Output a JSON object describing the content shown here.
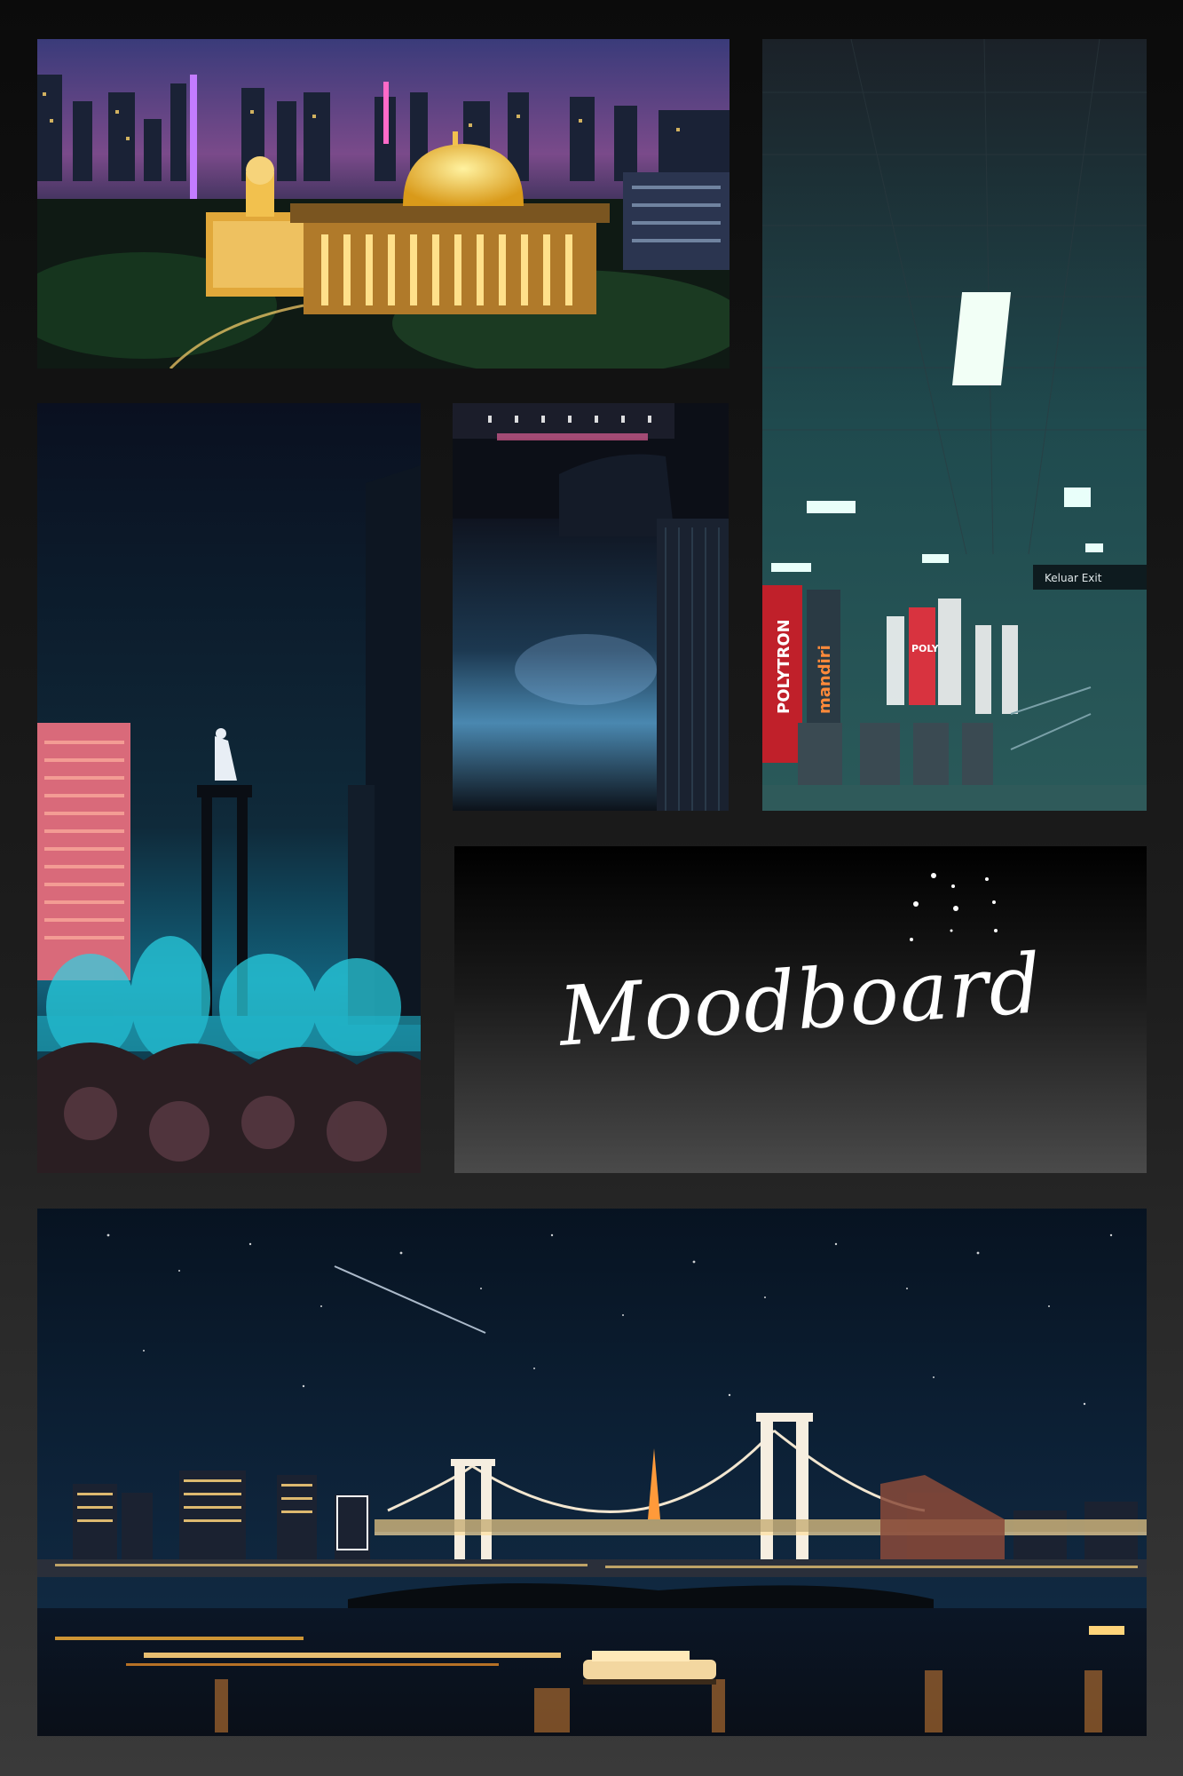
{
  "title": {
    "text": "Moodboard"
  },
  "panels": {
    "mosque": {
      "icon": "city-mosque-night-photo"
    },
    "monument": {
      "icon": "monument-fountain-night-photo"
    },
    "street": {
      "icon": "wet-street-night-photo"
    },
    "station": {
      "icon": "metro-station-photo",
      "sign_text": "Keluar Exit",
      "ad_text": [
        "POLYTRON",
        "mandiri",
        "POLY"
      ]
    },
    "bridge": {
      "icon": "bridge-skyline-night-photo"
    },
    "stars": {
      "icon": "sparkle-stars-icon"
    }
  },
  "colors": {
    "accent_gold": "#f2c14e",
    "accent_teal": "#2ad4e6",
    "accent_magenta": "#ff3fa4",
    "night_blue": "#0b1b2e"
  }
}
